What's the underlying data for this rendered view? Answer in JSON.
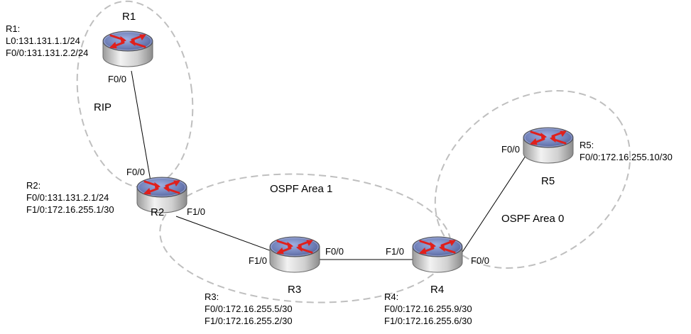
{
  "routers": {
    "r1": {
      "name": "R1",
      "info": [
        "R1:",
        "L0:131.131.1.1/24",
        "F0/0:131.131.2.2/24"
      ],
      "ports": [
        "F0/0"
      ]
    },
    "r2": {
      "name": "R2",
      "info": [
        "R2:",
        "F0/0:131.131.2.1/24",
        "F1/0:172.16.255.1/30"
      ],
      "ports": [
        "F0/0",
        "F1/0"
      ]
    },
    "r3": {
      "name": "R3",
      "info": [
        "R3:",
        "F0/0:172.16.255.5/30",
        "F1/0:172.16.255.2/30"
      ],
      "ports": [
        "F1/0",
        "F0/0"
      ]
    },
    "r4": {
      "name": "R4",
      "info": [
        "R4:",
        "F0/0:172.16.255.9/30",
        "F1/0:172.16.255.6/30"
      ],
      "ports": [
        "F1/0",
        "F0/0"
      ]
    },
    "r5": {
      "name": "R5",
      "info": [
        "R5:",
        "F0/0:172.16.255.10/30"
      ],
      "ports": [
        "F0/0"
      ]
    }
  },
  "areas": {
    "rip": "RIP",
    "ospf_area_1": "OSPF Area 1",
    "ospf_area_0": "OSPF Area 0"
  },
  "colors": {
    "router_top": "#6f7fb8",
    "router_body": "#d6d6d6",
    "arrow": "#e0201c",
    "area_outline": "#bfbfbf",
    "link": "#000000"
  },
  "icons": {
    "router": "router-icon"
  }
}
